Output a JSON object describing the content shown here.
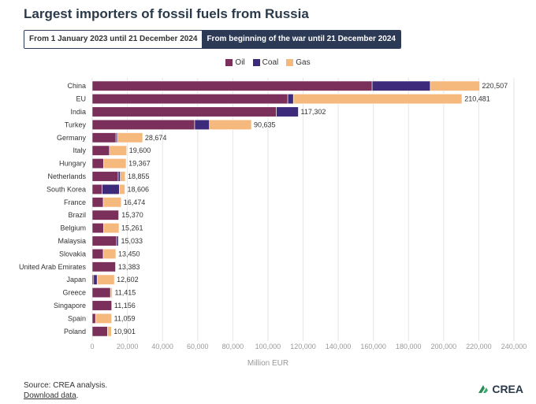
{
  "title": "Largest importers of fossil fuels from Russia",
  "toggle": {
    "option1": "From 1 January 2023 until 21 December 2024",
    "option2": "From beginning of the war until 21 December 2024"
  },
  "footer": {
    "source": "Source: CREA analysis.",
    "download": "Download data",
    "logo_text": "CREA"
  },
  "colors": {
    "oil": "#7b2f5b",
    "coal": "#3e2a7a",
    "gas": "#f5b97d"
  },
  "chart_data": {
    "type": "bar",
    "orientation": "horizontal",
    "stacked": true,
    "xlabel": "Million EUR",
    "xlim": [
      0,
      240000
    ],
    "xticks": [
      0,
      20000,
      40000,
      60000,
      80000,
      100000,
      120000,
      140000,
      160000,
      180000,
      200000,
      220000,
      240000
    ],
    "xtick_labels": [
      "0",
      "20,000",
      "40,000",
      "60,000",
      "80,000",
      "100,000",
      "120,000",
      "140,000",
      "160,000",
      "180,000",
      "200,000",
      "220,000",
      "240,000"
    ],
    "grid": true,
    "legend_position": "top-center",
    "categories": [
      "China",
      "EU",
      "India",
      "Turkey",
      "Germany",
      "Italy",
      "Hungary",
      "Netherlands",
      "South Korea",
      "France",
      "Brazil",
      "Belgium",
      "Malaysia",
      "Slovakia",
      "United Arab Emirates",
      "Japan",
      "Greece",
      "Singapore",
      "Spain",
      "Poland"
    ],
    "series": [
      {
        "name": "Oil",
        "values": [
          159300,
          111300,
          104800,
          58300,
          13500,
          9800,
          6500,
          14800,
          5600,
          6300,
          15100,
          6500,
          13900,
          6300,
          13300,
          800,
          10400,
          11100,
          1900,
          8700
        ]
      },
      {
        "name": "Coal",
        "values": [
          33100,
          3200,
          12500,
          8400,
          800,
          0,
          0,
          1200,
          9800,
          0,
          0,
          0,
          1000,
          0,
          0,
          2000,
          0,
          0,
          0,
          0
        ]
      },
      {
        "name": "Gas",
        "values": [
          28100,
          95900,
          0,
          23900,
          14400,
          9800,
          12800,
          2800,
          3200,
          10200,
          270,
          8760,
          130,
          7150,
          83,
          9800,
          1015,
          56,
          9159,
          2201
        ]
      }
    ],
    "totals": [
      220507,
      210481,
      117302,
      90635,
      28674,
      19600,
      19367,
      18855,
      18606,
      16474,
      15370,
      15261,
      15033,
      13450,
      13383,
      12602,
      11415,
      11156,
      11059,
      10901
    ],
    "total_labels": [
      "220,507",
      "210,481",
      "117,302",
      "90,635",
      "28,674",
      "19,600",
      "19,367",
      "18,855",
      "18,606",
      "16,474",
      "15,370",
      "15,261",
      "15,033",
      "13,450",
      "13,383",
      "12,602",
      "11,415",
      "11,156",
      "11,059",
      "10,901"
    ]
  }
}
